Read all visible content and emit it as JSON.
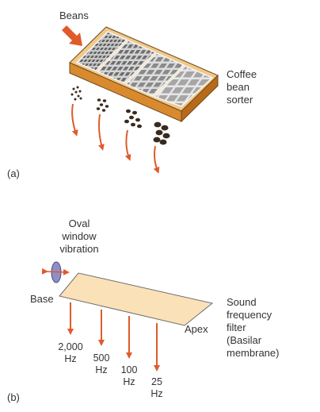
{
  "panel_a": {
    "panel_label": "(a)",
    "input_label": "Beans",
    "device_label": [
      "Coffee",
      "bean",
      "sorter"
    ]
  },
  "panel_b": {
    "panel_label": "(b)",
    "oval_window_label": [
      "Oval",
      "window",
      "vibration"
    ],
    "base_label": "Base",
    "apex_label": "Apex",
    "filter_label": [
      "Sound",
      "frequency",
      "filter",
      "(Basilar",
      "membrane)"
    ],
    "frequencies": [
      {
        "value": "2,000",
        "unit": "Hz"
      },
      {
        "value": "500",
        "unit": "Hz"
      },
      {
        "value": "100",
        "unit": "Hz"
      },
      {
        "value": "25",
        "unit": "Hz"
      }
    ]
  },
  "colors": {
    "arrow": "#e05a2b",
    "box_side": "#d98a2e",
    "box_top": "#f2c98a",
    "screen_frame": "#f6f6f6",
    "screen_mesh": "#8f8f8f",
    "membrane_fill": "#fbe1b8",
    "oval_window": "#8f8fc8",
    "bean": "#3a2a1e",
    "text": "#333333"
  }
}
